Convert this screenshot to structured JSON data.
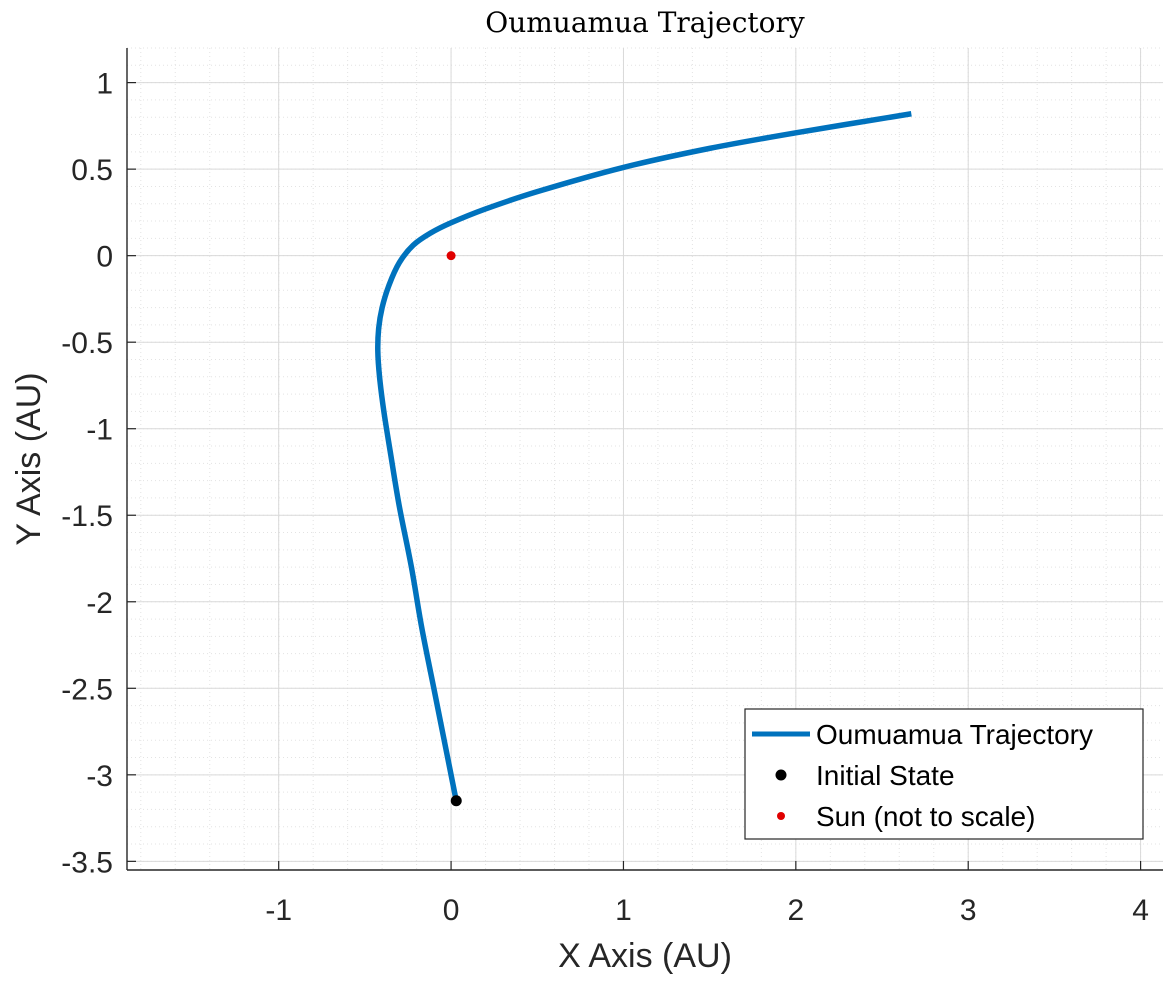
{
  "chart_data": {
    "type": "line",
    "title": "Oumuamua Trajectory",
    "xlabel": "X Axis (AU)",
    "ylabel": "Y Axis (AU)",
    "xlim": [
      -1.88,
      4.13
    ],
    "ylim": [
      -3.55,
      1.2
    ],
    "xticks": [
      -1,
      0,
      1,
      2,
      3,
      4
    ],
    "yticks": [
      1,
      0.5,
      0,
      -0.5,
      -1,
      -1.5,
      -2,
      -2.5,
      -3,
      -3.5
    ],
    "xtick_labels": [
      "-1",
      "0",
      "1",
      "2",
      "3",
      "4"
    ],
    "ytick_labels": [
      "1",
      "0.5",
      "0",
      "-0.5",
      "-1",
      "-1.5",
      "-2",
      "-2.5",
      "-3",
      "-3.5"
    ],
    "grid": true,
    "minor_grid": true,
    "legend_position": "bottom-right",
    "series": [
      {
        "name": "Oumuamua Trajectory",
        "kind": "line",
        "color": "#0072BD",
        "x": [
          0.03,
          -0.03,
          -0.1,
          -0.17,
          -0.23,
          -0.3,
          -0.35,
          -0.39,
          -0.415,
          -0.425,
          -0.42,
          -0.4,
          -0.36,
          -0.3,
          -0.22,
          -0.12,
          0.0,
          0.2,
          0.5,
          1.0,
          1.5,
          2.0,
          2.67
        ],
        "y": [
          -3.15,
          -2.85,
          -2.5,
          -2.15,
          -1.8,
          -1.45,
          -1.15,
          -0.9,
          -0.7,
          -0.55,
          -0.42,
          -0.3,
          -0.17,
          -0.04,
          0.06,
          0.13,
          0.19,
          0.27,
          0.37,
          0.51,
          0.62,
          0.71,
          0.82
        ]
      },
      {
        "name": "Initial State",
        "kind": "point",
        "color": "#000000",
        "x": [
          0.03
        ],
        "y": [
          -3.15
        ]
      },
      {
        "name": "Sun (not to scale)",
        "kind": "point",
        "color": "#E00000",
        "x": [
          0
        ],
        "y": [
          0
        ]
      }
    ]
  }
}
